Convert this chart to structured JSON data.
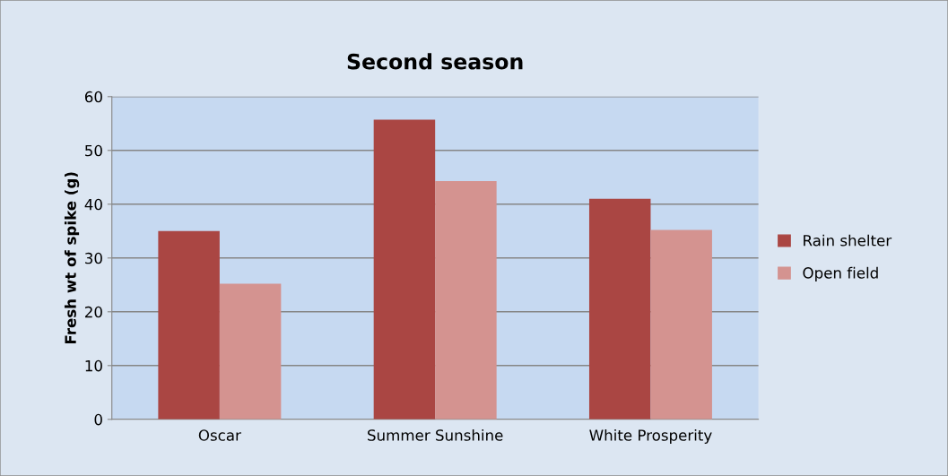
{
  "chart_data": {
    "type": "bar",
    "title": "Second season",
    "ylabel": "Fresh wt of spike (g)",
    "categories": [
      "Oscar",
      "Summer Sunshine",
      "White Prosperity"
    ],
    "series": [
      {
        "name": "Rain shelter",
        "color": "#aa4643",
        "values": [
          35,
          55.7,
          41
        ]
      },
      {
        "name": "Open field",
        "color": "#d49390",
        "values": [
          25.2,
          44.3,
          35.2
        ]
      }
    ],
    "ylim": [
      0,
      60
    ],
    "yticks": [
      0,
      10,
      20,
      30,
      40,
      50,
      60
    ],
    "grid": "y",
    "legend": "right"
  }
}
